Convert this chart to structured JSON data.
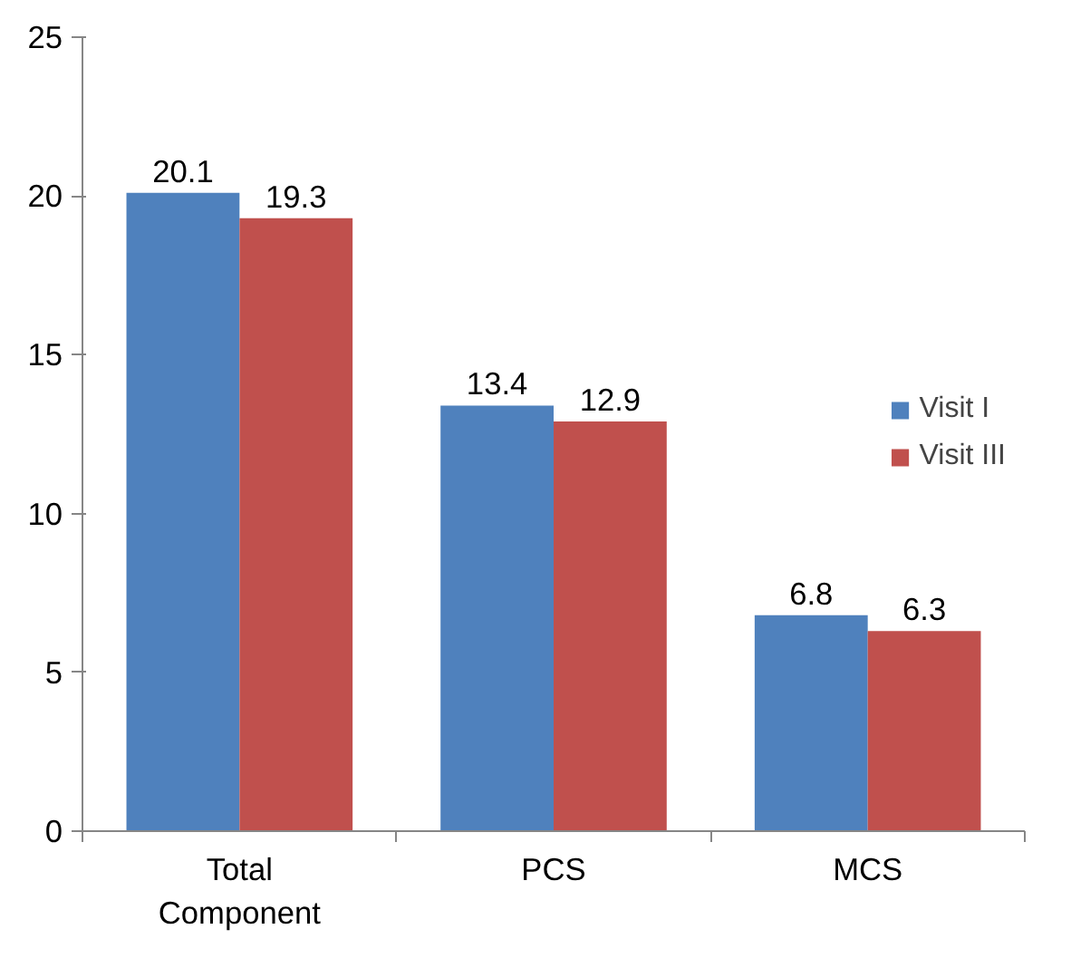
{
  "chart_data": {
    "type": "bar",
    "categories": [
      "Total\nComponent",
      "PCS",
      "MCS"
    ],
    "series": [
      {
        "name": "Visit I",
        "color": "#4f81bd",
        "values": [
          20.1,
          13.4,
          6.8
        ]
      },
      {
        "name": "Visit III",
        "color": "#c0504d",
        "values": [
          19.3,
          12.9,
          6.3
        ]
      }
    ],
    "ylim": [
      0,
      25
    ],
    "yticks": [
      0,
      5,
      10,
      15,
      20,
      25
    ],
    "grid": false,
    "legend": "right",
    "data_labels": true
  }
}
